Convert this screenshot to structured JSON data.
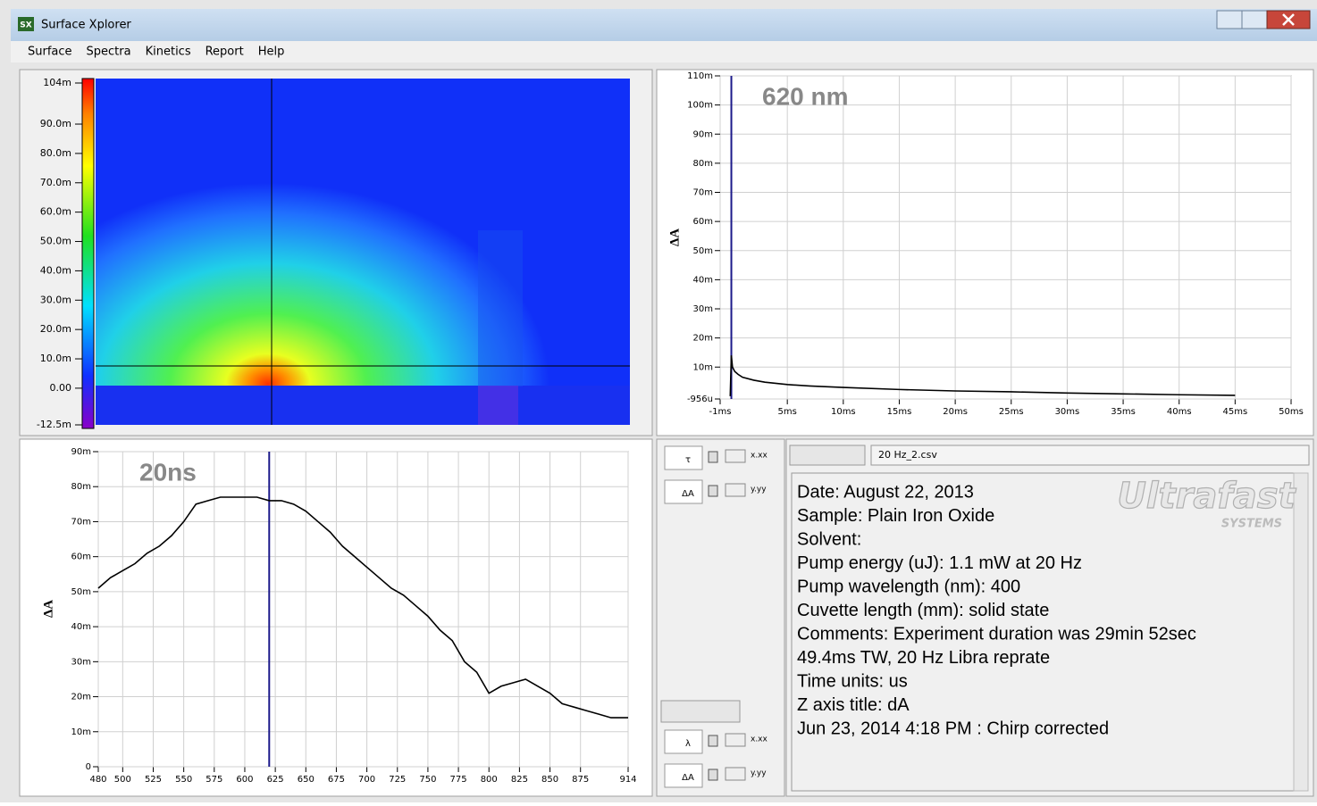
{
  "window": {
    "icon": "SX",
    "title": "Surface Xplorer"
  },
  "menu": [
    "Surface",
    "Spectra",
    "Kinetics",
    "Report",
    "Help"
  ],
  "chart_data": [
    {
      "type": "heatmap",
      "ylim": [
        -12.5,
        104
      ],
      "yticks": [
        {
          "value": -12.5,
          "label": "-12.5m"
        },
        {
          "value": 0,
          "label": "0.00"
        },
        {
          "value": 10,
          "label": "10.0m"
        },
        {
          "value": 20,
          "label": "20.0m"
        },
        {
          "value": 30,
          "label": "30.0m"
        },
        {
          "value": 40,
          "label": "40.0m"
        },
        {
          "value": 50,
          "label": "50.0m"
        },
        {
          "value": 60,
          "label": "60.0m"
        },
        {
          "value": 70,
          "label": "70.0m"
        },
        {
          "value": 80,
          "label": "80.0m"
        },
        {
          "value": 90,
          "label": "90.0m"
        },
        {
          "value": 104,
          "label": "104m"
        }
      ]
    },
    {
      "type": "line",
      "title": "620 nm",
      "ylabel": "ΔA",
      "x": [
        -0.1,
        0,
        0.1,
        0.3,
        0.6,
        1,
        2,
        3,
        5,
        7,
        10,
        15,
        20,
        25,
        30,
        35,
        40,
        45
      ],
      "series": [
        {
          "color": "#000000",
          "values": [
            0,
            14,
            10,
            8.5,
            7.5,
            6.5,
            5.5,
            4.8,
            4,
            3.5,
            3,
            2.3,
            1.8,
            1.5,
            1.1,
            0.8,
            0.5,
            0.3
          ]
        }
      ],
      "xlim": [
        -1,
        50
      ],
      "xticks": [
        {
          "value": -1,
          "label": "-1ms"
        },
        {
          "value": 5,
          "label": "5ms"
        },
        {
          "value": 10,
          "label": "10ms"
        },
        {
          "value": 15,
          "label": "15ms"
        },
        {
          "value": 20,
          "label": "20ms"
        },
        {
          "value": 25,
          "label": "25ms"
        },
        {
          "value": 30,
          "label": "30ms"
        },
        {
          "value": 35,
          "label": "35ms"
        },
        {
          "value": 40,
          "label": "40ms"
        },
        {
          "value": 45,
          "label": "45ms"
        },
        {
          "value": 50,
          "label": "50ms"
        }
      ],
      "ylim": [
        -0.956,
        110
      ],
      "yticks": [
        {
          "value": -0.956,
          "label": "-956u"
        },
        {
          "value": 10,
          "label": "10m"
        },
        {
          "value": 20,
          "label": "20m"
        },
        {
          "value": 30,
          "label": "30m"
        },
        {
          "value": 40,
          "label": "40m"
        },
        {
          "value": 50,
          "label": "50m"
        },
        {
          "value": 60,
          "label": "60m"
        },
        {
          "value": 70,
          "label": "70m"
        },
        {
          "value": 80,
          "label": "80m"
        },
        {
          "value": 90,
          "label": "90m"
        },
        {
          "value": 100,
          "label": "100m"
        },
        {
          "value": 110,
          "label": "110m"
        }
      ],
      "cursor_x": 0,
      "cursor_color": "#1c1a8a",
      "grid": true
    },
    {
      "type": "line",
      "title": "20ns",
      "ylabel": "ΔA",
      "x": [
        480,
        490,
        500,
        510,
        520,
        530,
        540,
        550,
        560,
        570,
        580,
        590,
        600,
        610,
        620,
        630,
        640,
        650,
        660,
        670,
        680,
        690,
        700,
        710,
        720,
        730,
        740,
        750,
        760,
        770,
        780,
        790,
        800,
        810,
        820,
        830,
        840,
        850,
        860,
        870,
        880,
        890,
        900,
        914
      ],
      "series": [
        {
          "color": "#000000",
          "values": [
            51,
            54,
            56,
            58,
            61,
            63,
            66,
            70,
            75,
            76,
            77,
            77,
            77,
            77,
            76,
            76,
            75,
            73,
            70,
            67,
            63,
            60,
            57,
            54,
            51,
            49,
            46,
            43,
            39,
            36,
            30,
            27,
            21,
            23,
            24,
            25,
            23,
            21,
            18,
            17,
            16,
            15,
            14,
            14
          ]
        }
      ],
      "xlim": [
        480,
        914
      ],
      "xticks": [
        480,
        500,
        525,
        550,
        575,
        600,
        625,
        650,
        675,
        700,
        725,
        750,
        775,
        800,
        825,
        850,
        875,
        914
      ],
      "ylim": [
        0,
        90
      ],
      "yticks": [
        0,
        {
          "value": 10,
          "label": "10m"
        },
        {
          "value": 20,
          "label": "20m"
        },
        {
          "value": 30,
          "label": "30m"
        },
        {
          "value": 40,
          "label": "40m"
        },
        {
          "value": 50,
          "label": "50m"
        },
        {
          "value": 60,
          "label": "60m"
        },
        {
          "value": 70,
          "label": "70m"
        },
        {
          "value": 80,
          "label": "80m"
        },
        {
          "value": 90,
          "label": "90m"
        }
      ],
      "cursor_x": 620,
      "cursor_color": "#1c1a8a",
      "grid": true
    }
  ],
  "file": "20 Hz_2.csv",
  "controls": {
    "top": [
      "τ",
      "ΔA"
    ],
    "bottom": [
      "λ",
      "ΔA"
    ],
    "x_format": "x.xx",
    "y_format": "y.yy"
  },
  "info": {
    "logo": "Ultrafast",
    "logo_sub": "SYSTEMS",
    "lines": [
      "Date: August 22, 2013",
      "Sample: Plain Iron Oxide",
      "Solvent:",
      "Pump energy (uJ): 1.1 mW at 20 Hz",
      "Pump wavelength (nm): 400",
      "Cuvette length (mm): solid state",
      "Comments: Experiment duration was 29min 52sec",
      "49.4ms TW, 20 Hz Libra reprate",
      "Time units: us",
      "Z axis title: dA",
      "Jun 23, 2014 4:18 PM : Chirp corrected"
    ]
  }
}
